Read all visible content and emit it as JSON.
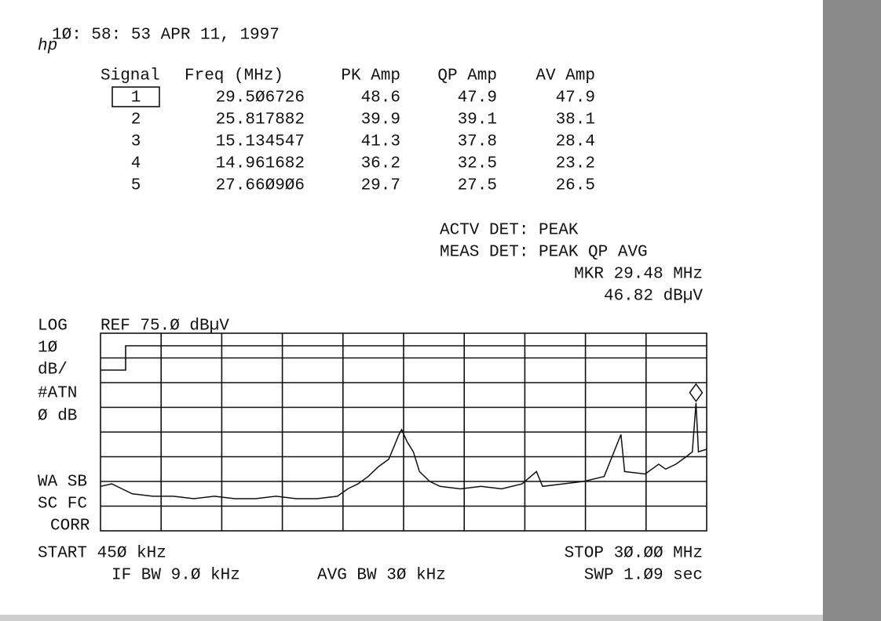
{
  "header": {
    "logo": "hp",
    "timestamp": "1Ø: 58: 53 APR 11, 1997"
  },
  "table": {
    "columns": [
      "Signal",
      "Freq (MHz)",
      "PK Amp",
      "QP Amp",
      "AV Amp"
    ],
    "rows": [
      [
        "1",
        "29.5Ø6726",
        "48.6",
        "47.9",
        "47.9"
      ],
      [
        "2",
        "25.817882",
        "39.9",
        "39.1",
        "38.1"
      ],
      [
        "3",
        "15.134547",
        "41.3",
        "37.8",
        "28.4"
      ],
      [
        "4",
        "14.961682",
        "36.2",
        "32.5",
        "23.2"
      ],
      [
        "5",
        "27.66Ø9Ø6",
        "29.7",
        "27.5",
        "26.5"
      ]
    ]
  },
  "status": {
    "actv_det": "ACTV DET:  PEAK",
    "meas_det": "MEAS DET:  PEAK QP AVG",
    "marker_freq": "MKR 29.48 MHz",
    "marker_amp": "46.82 dBµV"
  },
  "side_labels": [
    "LOG",
    "1Ø",
    "dB/",
    "#ATN",
    "Ø dB",
    "WA SB",
    "SC FC",
    "CORR"
  ],
  "ref_level": "REF 75.Ø dBµV",
  "footer": {
    "start": "START 45Ø kHz",
    "stop": "STOP 3Ø.ØØ MHz",
    "if_bw": "IF BW 9.Ø kHz",
    "avg_bw": "AVG BW 3Ø kHz",
    "sweep": "SWP 1.Ø9  sec"
  },
  "chart_data": {
    "type": "line",
    "color": "#111111",
    "x": [
      0.45,
      1.0,
      1.5,
      2,
      3,
      4,
      5,
      6,
      7,
      8,
      9,
      10,
      11,
      12,
      12.5,
      13,
      13.5,
      14,
      14.5,
      14.8,
      15.0,
      15.13,
      15.4,
      15.7,
      16,
      16.5,
      17,
      18,
      19,
      20,
      21,
      21.7,
      22,
      23,
      24,
      25,
      25.82,
      26,
      27,
      27.66,
      28,
      28.5,
      29,
      29.3,
      29.48,
      29.6,
      30
    ],
    "values": [
      13,
      14,
      12,
      10,
      9,
      9,
      8,
      9,
      8,
      8,
      9,
      8,
      8,
      9,
      12,
      14,
      17,
      21,
      24,
      30,
      34,
      36,
      31,
      27,
      19,
      15,
      13,
      12,
      13,
      12,
      14,
      19,
      13,
      14,
      15,
      17,
      34,
      19,
      18,
      22,
      20,
      22,
      25,
      27,
      46.82,
      27,
      28
    ],
    "xlim": [
      0.45,
      30
    ],
    "ylim": [
      -5,
      75
    ]
  }
}
